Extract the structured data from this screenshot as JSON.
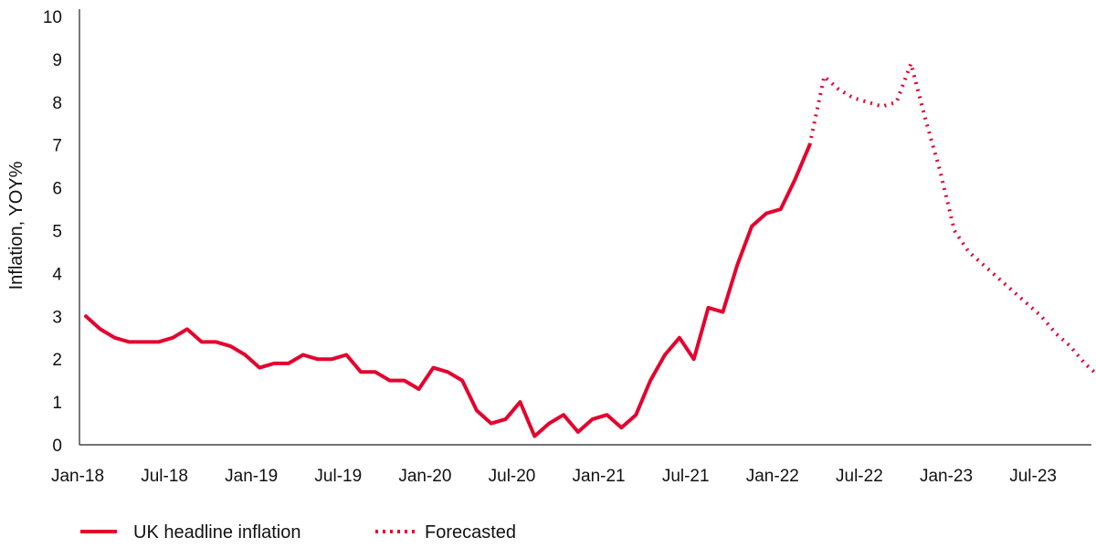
{
  "chart_data": {
    "type": "line",
    "title": "",
    "xlabel": "",
    "ylabel": "Inflation, YOY%",
    "ylim": [
      0,
      10
    ],
    "yticks": [
      "0",
      "1",
      "2",
      "3",
      "4",
      "5",
      "6",
      "7",
      "8",
      "9",
      "10"
    ],
    "xticks": [
      "Jan-18",
      "Jul-18",
      "Jan-19",
      "Jul-19",
      "Jan-20",
      "Jul-20",
      "Jan-21",
      "Jul-21",
      "Jan-22",
      "Jul-22",
      "Jan-23",
      "Jul-23"
    ],
    "x_range": [
      "2018-01",
      "2023-11"
    ],
    "legend_position": "bottom-left",
    "color": "#e4032e",
    "series": [
      {
        "name": "UK headline inflation",
        "style": "solid",
        "x": [
          "2018-01",
          "2018-02",
          "2018-03",
          "2018-04",
          "2018-05",
          "2018-06",
          "2018-07",
          "2018-08",
          "2018-09",
          "2018-10",
          "2018-11",
          "2018-12",
          "2019-01",
          "2019-02",
          "2019-03",
          "2019-04",
          "2019-05",
          "2019-06",
          "2019-07",
          "2019-08",
          "2019-09",
          "2019-10",
          "2019-11",
          "2019-12",
          "2020-01",
          "2020-02",
          "2020-03",
          "2020-04",
          "2020-05",
          "2020-06",
          "2020-07",
          "2020-08",
          "2020-09",
          "2020-10",
          "2020-11",
          "2020-12",
          "2021-01",
          "2021-02",
          "2021-03",
          "2021-04",
          "2021-05",
          "2021-06",
          "2021-07",
          "2021-08",
          "2021-09",
          "2021-10",
          "2021-11",
          "2021-12",
          "2022-01",
          "2022-02",
          "2022-03"
        ],
        "values": [
          3.0,
          2.7,
          2.5,
          2.4,
          2.4,
          2.4,
          2.5,
          2.7,
          2.4,
          2.4,
          2.3,
          2.1,
          1.8,
          1.9,
          1.9,
          2.1,
          2.0,
          2.0,
          2.1,
          1.7,
          1.7,
          1.5,
          1.5,
          1.3,
          1.8,
          1.7,
          1.5,
          0.8,
          0.5,
          0.6,
          1.0,
          0.2,
          0.5,
          0.7,
          0.3,
          0.6,
          0.7,
          0.4,
          0.7,
          1.5,
          2.1,
          2.5,
          2.0,
          3.2,
          3.1,
          4.2,
          5.1,
          5.4,
          5.5,
          6.2,
          7.0
        ]
      },
      {
        "name": "Forecasted",
        "style": "dotted",
        "x": [
          "2022-03",
          "2022-04",
          "2022-05",
          "2022-06",
          "2022-07",
          "2022-08",
          "2022-09",
          "2022-10",
          "2022-11",
          "2022-12",
          "2023-01",
          "2023-02",
          "2023-03",
          "2023-04",
          "2023-05",
          "2023-06",
          "2023-07",
          "2023-08",
          "2023-09",
          "2023-10",
          "2023-11"
        ],
        "values": [
          7.0,
          8.6,
          8.3,
          8.1,
          8.0,
          7.9,
          8.0,
          8.9,
          7.6,
          6.4,
          5.0,
          4.5,
          4.2,
          3.9,
          3.6,
          3.3,
          3.0,
          2.6,
          2.3,
          1.9,
          1.6
        ]
      }
    ]
  }
}
